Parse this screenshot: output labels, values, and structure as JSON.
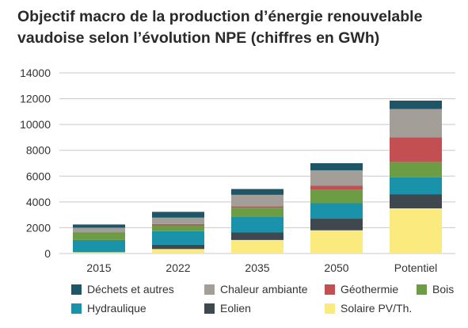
{
  "title_lines": [
    "Objectif macro de la production d’énergie renouvelable",
    "vaudoise selon l’évolution NPE (chiffres en GWh)"
  ],
  "chart_data": {
    "type": "bar",
    "stacked": true,
    "title": "Objectif macro de la production d’énergie renouvelable vaudoise selon l’évolution NPE (chiffres en GWh)",
    "xlabel": "",
    "ylabel": "",
    "categories": [
      "2015",
      "2022",
      "2035",
      "2050",
      "Potentiel"
    ],
    "ylim": [
      0,
      14000
    ],
    "yticks": [
      "0",
      "2000",
      "4000",
      "6000",
      "8000",
      "10000",
      "12000",
      "14000"
    ],
    "grid": true,
    "legend_position": "bottom",
    "series": [
      {
        "name": "Solaire PV/Th.",
        "color": "#FBEA7E",
        "values": [
          100,
          350,
          1050,
          1800,
          3500
        ]
      },
      {
        "name": "Eolien",
        "color": "#3F484E",
        "values": [
          0,
          330,
          600,
          900,
          1100
        ]
      },
      {
        "name": "Hydraulique",
        "color": "#1A93AA",
        "values": [
          950,
          1050,
          1200,
          1200,
          1300
        ]
      },
      {
        "name": "Bois",
        "color": "#6C9C43",
        "values": [
          550,
          450,
          700,
          1050,
          1200
        ]
      },
      {
        "name": "Géothermie",
        "color": "#C44F52",
        "values": [
          50,
          100,
          100,
          300,
          1900
        ]
      },
      {
        "name": "Chaleur ambiante",
        "color": "#A49E99",
        "values": [
          350,
          500,
          900,
          1200,
          2200
        ]
      },
      {
        "name": "Déchets et autres",
        "color": "#1E5667",
        "values": [
          250,
          450,
          450,
          550,
          650
        ]
      }
    ]
  },
  "legend_order": [
    "Déchets et autres",
    "Chaleur ambiante",
    "Géothermie",
    "Bois",
    "Hydraulique",
    "Eolien",
    "Solaire PV/Th."
  ]
}
